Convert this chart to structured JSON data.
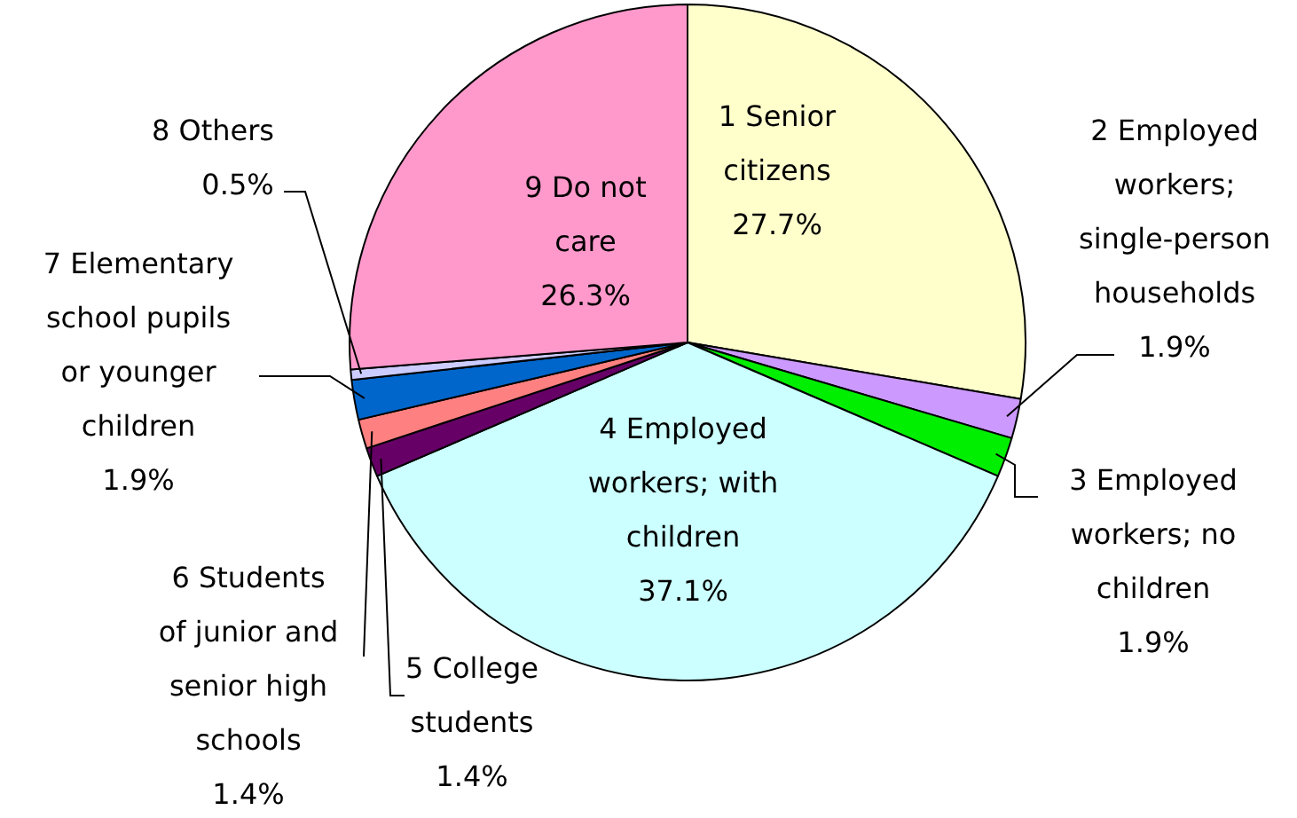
{
  "chart_data": {
    "type": "pie",
    "categories": [
      "1 Senior citizens",
      "2 Employed workers; single-person households",
      "3 Employed workers; no children",
      "4 Employed workers; with children",
      "5 College students",
      "6 Students of junior and senior high schools",
      "7 Elementary school pupils or younger children",
      "8 Others",
      "9 Do not care"
    ],
    "values": [
      27.7,
      1.9,
      1.9,
      37.1,
      1.4,
      1.4,
      1.9,
      0.5,
      26.3
    ],
    "value_labels": [
      "27.7%",
      "1.9%",
      "1.9%",
      "37.1%",
      "1.4%",
      "1.4%",
      "1.9%",
      "0.5%",
      "26.3%"
    ],
    "colors": [
      "#ffffcc",
      "#cc99ff",
      "#00ee00",
      "#ccffff",
      "#660066",
      "#ff8080",
      "#0066cc",
      "#ccccff",
      "#ff99cc"
    ]
  }
}
